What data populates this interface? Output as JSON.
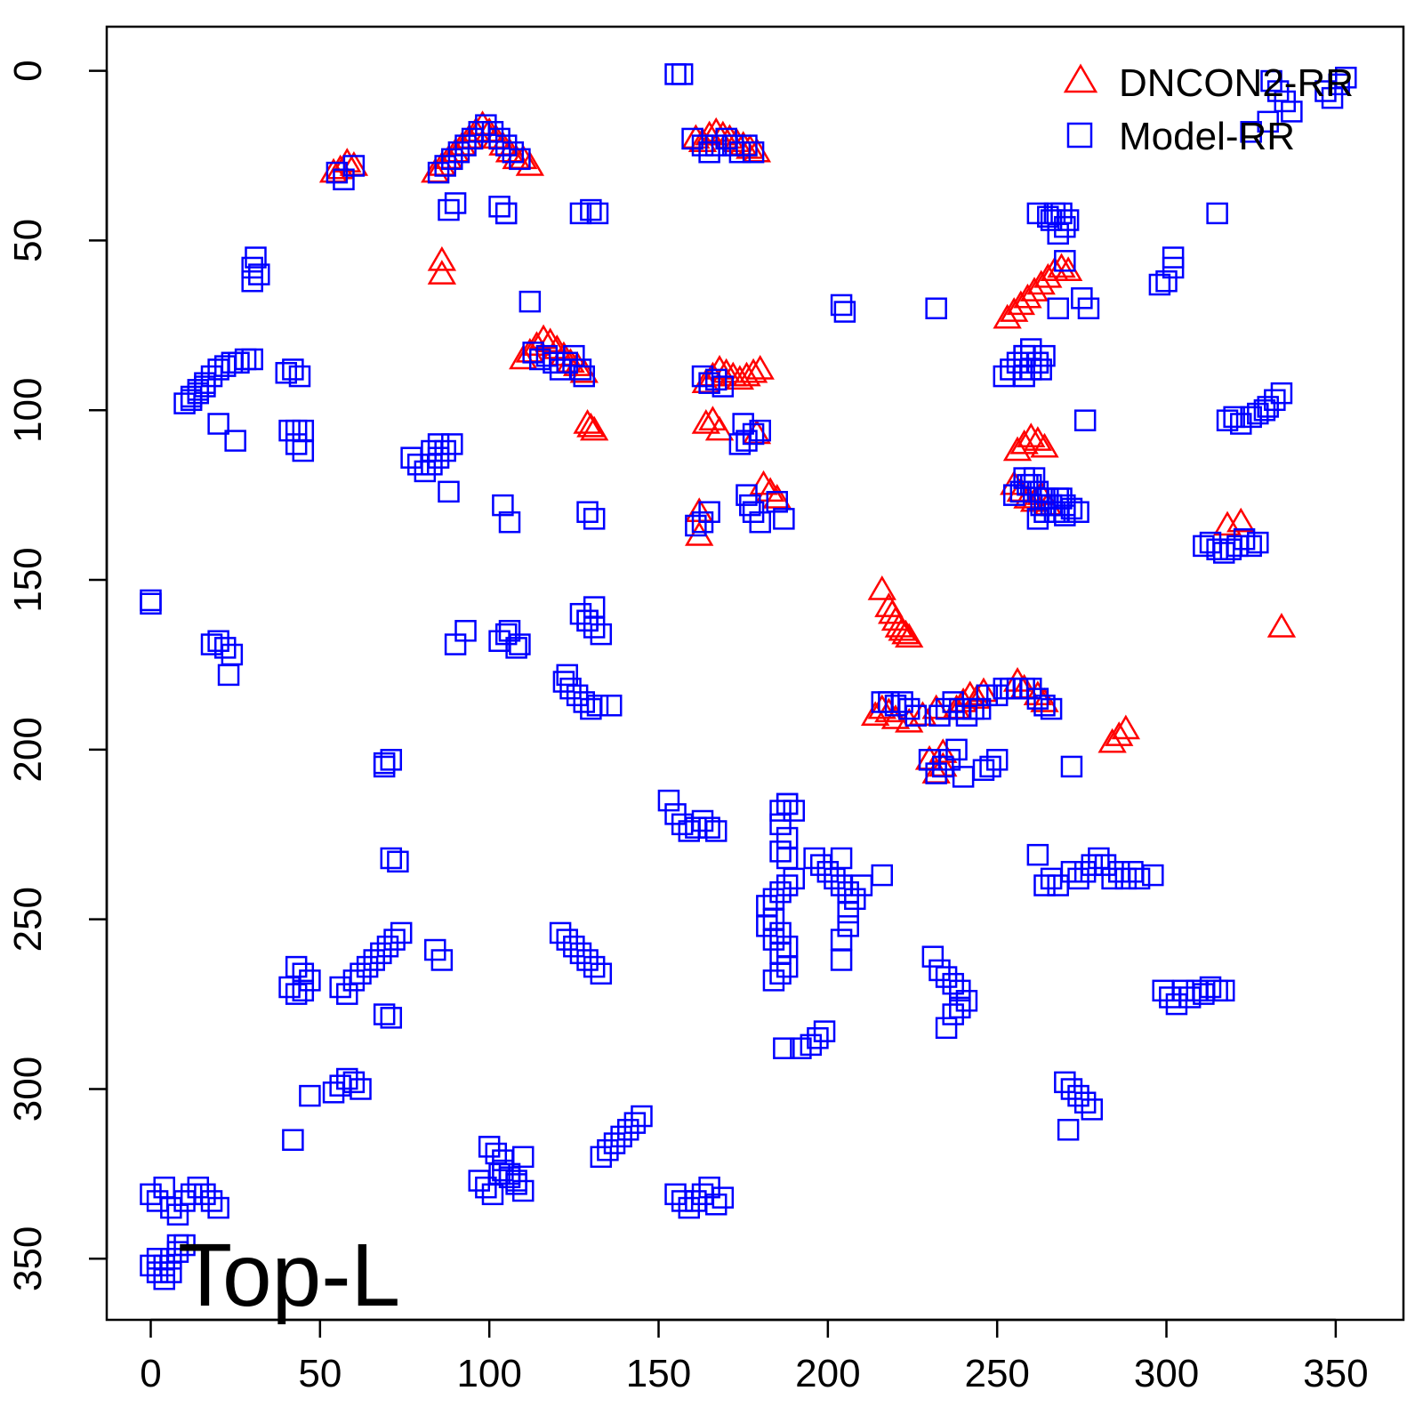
{
  "chart_data": {
    "type": "scatter",
    "title": "",
    "xlabel": "",
    "ylabel": "",
    "xlim": [
      -13,
      370
    ],
    "ylim": [
      368,
      -13
    ],
    "y_reversed": true,
    "x_ticks": [
      0,
      50,
      100,
      150,
      200,
      250,
      300,
      350
    ],
    "y_ticks": [
      0,
      50,
      100,
      150,
      200,
      250,
      300,
      350
    ],
    "x_tick_labels": [
      "0",
      "50",
      "100",
      "150",
      "200",
      "250",
      "300",
      "350"
    ],
    "y_tick_labels": [
      "0",
      "50",
      "100",
      "150",
      "200",
      "250",
      "300",
      "350"
    ],
    "grid": false,
    "legend_position": "top-right",
    "annotation": "Top-L",
    "series": [
      {
        "name": "DNCON2-RR",
        "marker": "triangle",
        "color": "#ff0000",
        "x": [
          54,
          56,
          58,
          60,
          84,
          86,
          88,
          90,
          92,
          94,
          96,
          98,
          100,
          102,
          104,
          106,
          108,
          110,
          112,
          86,
          86,
          110,
          112,
          114,
          116,
          118,
          120,
          122,
          124,
          126,
          128,
          130,
          129,
          131,
          161,
          163,
          165,
          167,
          169,
          171,
          173,
          175,
          177,
          179,
          164,
          166,
          168,
          170,
          172,
          174,
          176,
          178,
          180,
          162,
          162,
          164,
          166,
          168,
          179,
          181,
          183,
          185,
          216,
          218,
          220,
          222,
          224,
          219,
          221,
          223,
          214,
          216,
          218,
          220,
          224,
          228,
          232,
          234,
          230,
          232,
          234,
          238,
          240,
          242,
          244,
          246,
          256,
          258,
          262,
          264,
          284,
          286,
          288,
          253,
          255,
          257,
          259,
          261,
          263,
          265,
          267,
          269,
          271,
          256,
          258,
          260,
          262,
          264,
          255,
          257,
          259,
          261,
          263,
          265,
          318,
          322,
          334
        ],
        "y": [
          30,
          29,
          27,
          28,
          30,
          28,
          26,
          24,
          22,
          20,
          18,
          16,
          18,
          20,
          22,
          24,
          26,
          26,
          28,
          56,
          60,
          85,
          83,
          81,
          79,
          80,
          82,
          84,
          86,
          87,
          89,
          105,
          104,
          106,
          20,
          21,
          19,
          18,
          19,
          20,
          21,
          22,
          23,
          24,
          92,
          90,
          88,
          89,
          90,
          91,
          90,
          89,
          88,
          130,
          137,
          104,
          103,
          106,
          107,
          122,
          124,
          126,
          153,
          158,
          162,
          165,
          167,
          160,
          164,
          166,
          190,
          188,
          189,
          191,
          192,
          190,
          188,
          205,
          203,
          207,
          201,
          188,
          186,
          184,
          185,
          183,
          180,
          182,
          184,
          186,
          198,
          196,
          194,
          73,
          71,
          69,
          67,
          65,
          63,
          61,
          59,
          58,
          59,
          112,
          110,
          108,
          109,
          111,
          122,
          124,
          126,
          127,
          125,
          128,
          134,
          133,
          164
        ]
      },
      {
        "name": "Model-RR",
        "marker": "square",
        "color": "#0000ff",
        "x": [
          155,
          157,
          347,
          349,
          351,
          353,
          331,
          333,
          335,
          337,
          330,
          325,
          55,
          57,
          60,
          85,
          87,
          89,
          91,
          93,
          95,
          97,
          99,
          101,
          103,
          105,
          107,
          109,
          103,
          105,
          160,
          163,
          165,
          167,
          170,
          172,
          174,
          176,
          178,
          88,
          90,
          105,
          127,
          130,
          132,
          31,
          30,
          32,
          30,
          204,
          205,
          232,
          265,
          267,
          269,
          271,
          262,
          266,
          270,
          268,
          270,
          268,
          275,
          277,
          298,
          300,
          302,
          302,
          315,
          112,
          113,
          115,
          117,
          119,
          121,
          123,
          125,
          127,
          128,
          255,
          257,
          259,
          261,
          263,
          265,
          267,
          269,
          252,
          254,
          256,
          258,
          260,
          258,
          262,
          263,
          10,
          12,
          14,
          16,
          18,
          20,
          22,
          24,
          26,
          28,
          30,
          12,
          14,
          16,
          20,
          25,
          40,
          42,
          44,
          43,
          45,
          41,
          43,
          45,
          83,
          85,
          87,
          89,
          81,
          79,
          77,
          83,
          85,
          88,
          129,
          131,
          163,
          165,
          167,
          169,
          174,
          176,
          178,
          180,
          175,
          177,
          176,
          178,
          180,
          262,
          264,
          266,
          268,
          270,
          104,
          106,
          161,
          163,
          165,
          185,
          187,
          258,
          260,
          262,
          264,
          258,
          260,
          262,
          264,
          266,
          268,
          270,
          272,
          274,
          276,
          330,
          332,
          334,
          325,
          327,
          329,
          318,
          320,
          322,
          311,
          313,
          315,
          317,
          319,
          321,
          323,
          325,
          327,
          0,
          0,
          18,
          20,
          22,
          24,
          23,
          93,
          90,
          105,
          108,
          103,
          106,
          109,
          127,
          129,
          131,
          133,
          131,
          129,
          123,
          122,
          124,
          126,
          128,
          130,
          132,
          136,
          216,
          218,
          220,
          222,
          224,
          226,
          233,
          235,
          237,
          239,
          241,
          243,
          245,
          247,
          250,
          252,
          254,
          256,
          258,
          260,
          262,
          264,
          266,
          272,
          230,
          232,
          234,
          236,
          238,
          240,
          246,
          248,
          250,
          71,
          73,
          69,
          71,
          69,
          153,
          155,
          157,
          159,
          161,
          163,
          165,
          167,
          188,
          190,
          186,
          188,
          186,
          188,
          186,
          188,
          196,
          198,
          200,
          202,
          204,
          206,
          208,
          210,
          216,
          204,
          206,
          206,
          204,
          204,
          182,
          184,
          186,
          188,
          190,
          184,
          186,
          188,
          182,
          184,
          186,
          188,
          184,
          186,
          262,
          264,
          266,
          268,
          272,
          274,
          276,
          278,
          280,
          282,
          284,
          286,
          288,
          290,
          292,
          296,
          43,
          45,
          47,
          41,
          43,
          45,
          56,
          58,
          60,
          62,
          64,
          66,
          68,
          70,
          72,
          74,
          69,
          71,
          84,
          86,
          106,
          108,
          110,
          104,
          106,
          108,
          110,
          121,
          123,
          125,
          127,
          129,
          131,
          133,
          235,
          237,
          239,
          241,
          233,
          235,
          237,
          239,
          231,
          299,
          301,
          303,
          305,
          307,
          309,
          311,
          313,
          315,
          317,
          47,
          42,
          54,
          56,
          58,
          60,
          62,
          100,
          102,
          104,
          97,
          99,
          101,
          103,
          133,
          135,
          137,
          139,
          141,
          143,
          145,
          270,
          272,
          274,
          276,
          278,
          271,
          0,
          2,
          4,
          6,
          8,
          10,
          12,
          14,
          16,
          18,
          20,
          2,
          4,
          6,
          8,
          10,
          0,
          2,
          4,
          6,
          8,
          155,
          157,
          159,
          161,
          163,
          165,
          167,
          169,
          187,
          192,
          195,
          197,
          199
        ],
        "y": [
          1,
          1,
          6,
          8,
          4,
          2,
          3,
          6,
          9,
          12,
          15,
          18,
          30,
          32,
          28,
          30,
          28,
          26,
          24,
          22,
          20,
          18,
          16,
          18,
          20,
          22,
          24,
          26,
          40,
          42,
          20,
          22,
          24,
          22,
          20,
          22,
          24,
          22,
          24,
          41,
          39,
          42,
          42,
          41,
          42,
          55,
          58,
          60,
          62,
          69,
          71,
          70,
          43,
          42,
          42,
          44,
          42,
          44,
          46,
          48,
          56,
          70,
          67,
          70,
          63,
          62,
          58,
          55,
          42,
          68,
          83,
          85,
          84,
          86,
          88,
          86,
          84,
          88,
          90,
          125,
          124,
          122,
          120,
          128,
          126,
          130,
          126,
          90,
          88,
          86,
          84,
          82,
          84,
          86,
          88,
          98,
          96,
          94,
          92,
          90,
          88,
          87,
          86,
          86,
          85,
          85,
          97,
          95,
          93,
          104,
          109,
          89,
          88,
          90,
          106,
          106,
          106,
          110,
          112,
          116,
          114,
          112,
          110,
          118,
          116,
          114,
          112,
          110,
          124,
          130,
          132,
          90,
          92,
          91,
          93,
          110,
          109,
          107,
          106,
          104,
          128,
          125,
          130,
          133,
          132,
          130,
          128,
          126,
          128,
          128,
          133,
          134,
          133,
          130,
          127,
          132,
          90,
          88,
          86,
          84,
          120,
          122,
          124,
          126,
          128,
          130,
          131,
          129,
          130,
          103,
          99,
          97,
          95,
          102,
          101,
          100,
          103,
          102,
          104,
          140,
          139,
          141,
          142,
          141,
          140,
          138,
          140,
          139,
          157,
          156,
          169,
          168,
          170,
          172,
          178,
          165,
          169,
          166,
          170,
          168,
          165,
          169,
          160,
          162,
          164,
          166,
          158,
          162,
          178,
          180,
          182,
          184,
          186,
          188,
          187,
          187,
          186,
          186,
          187,
          186,
          188,
          190,
          190,
          188,
          186,
          188,
          190,
          188,
          188,
          184,
          184,
          182,
          182,
          182,
          182,
          182,
          185,
          187,
          188,
          205,
          203,
          207,
          205,
          203,
          200,
          208,
          206,
          205,
          203,
          232,
          233,
          204,
          203,
          205,
          215,
          219,
          222,
          224,
          223,
          221,
          223,
          224,
          216,
          218,
          222,
          226,
          230,
          232,
          218,
          216,
          232,
          234,
          236,
          238,
          240,
          242,
          244,
          240,
          237,
          232,
          248,
          252,
          256,
          262,
          246,
          244,
          242,
          240,
          238,
          250,
          254,
          258,
          252,
          256,
          260,
          264,
          268,
          266,
          231,
          240,
          238,
          240,
          236,
          238,
          236,
          234,
          232,
          234,
          238,
          236,
          238,
          236,
          238,
          237,
          264,
          266,
          268,
          270,
          272,
          271,
          270,
          272,
          268,
          266,
          264,
          262,
          260,
          258,
          256,
          254,
          278,
          279,
          259,
          262,
          325,
          327,
          320,
          324,
          326,
          328,
          330,
          254,
          256,
          258,
          260,
          262,
          264,
          266,
          282,
          278,
          276,
          274,
          265,
          267,
          269,
          271,
          261,
          271,
          273,
          275,
          271,
          273,
          271,
          272,
          270,
          271,
          271,
          302,
          315,
          301,
          299,
          297,
          298,
          300,
          317,
          319,
          321,
          327,
          329,
          331,
          325,
          320,
          318,
          316,
          314,
          312,
          310,
          308,
          298,
          300,
          302,
          304,
          306,
          312,
          331,
          333,
          329,
          335,
          337,
          333,
          331,
          329,
          331,
          333,
          335,
          350,
          352,
          354,
          348,
          346,
          352,
          354,
          356,
          350,
          346,
          331,
          333,
          335,
          333,
          331,
          329,
          334,
          332,
          288,
          288,
          287,
          285,
          283
        ]
      }
    ]
  }
}
